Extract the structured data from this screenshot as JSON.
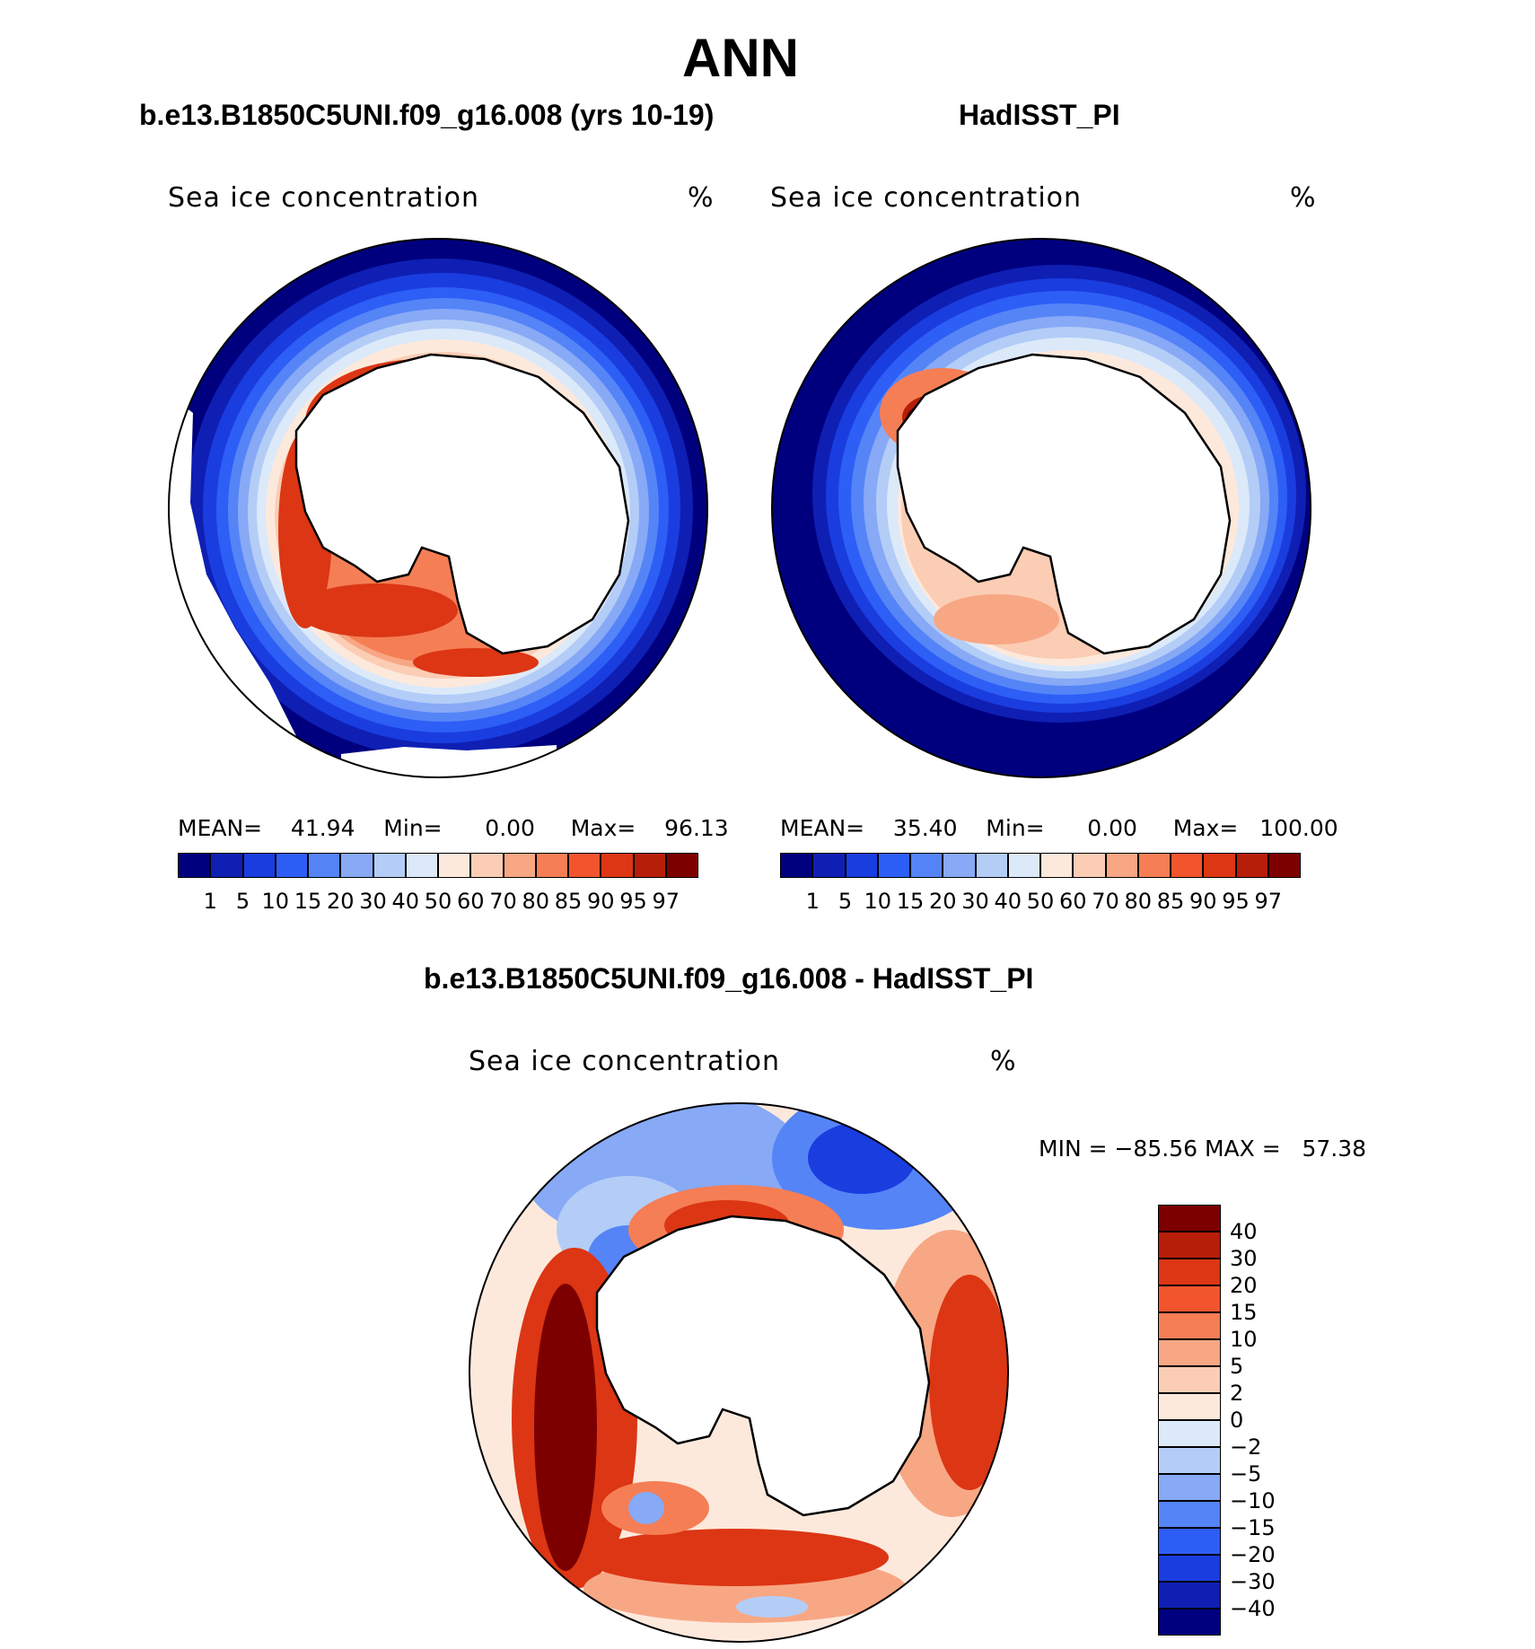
{
  "title": "ANN",
  "panels": [
    {
      "subtitle": "b.e13.B1850C5UNI.f09_g16.008 (yrs 10-19)",
      "label": "Sea ice concentration",
      "units": "%",
      "stats": {
        "mean_label": "MEAN=",
        "mean": "41.94",
        "min_label": "Min=",
        "min": "0.00",
        "max_label": "Max=",
        "max": "96.13"
      }
    },
    {
      "subtitle": "HadISST_PI",
      "label": "Sea ice concentration",
      "units": "%",
      "stats": {
        "mean_label": "MEAN=",
        "mean": "35.40",
        "min_label": "Min=",
        "min": "0.00",
        "max_label": "Max=",
        "max": "100.00"
      }
    }
  ],
  "diff_panel": {
    "subtitle": "b.e13.B1850C5UNI.f09_g16.008 - HadISST_PI",
    "label": "Sea ice concentration",
    "units": "%",
    "stats": "MIN = −85.56 MAX =   57.38"
  },
  "colorbar_abs": {
    "colors": [
      "#00007f",
      "#0f1fb3",
      "#1a3de0",
      "#2d5ef6",
      "#5584f7",
      "#87a9f6",
      "#b3cdf7",
      "#dce9f9",
      "#fde9dc",
      "#fbcdb5",
      "#f8a784",
      "#f57e55",
      "#f2552e",
      "#dc3614",
      "#b71e0a",
      "#7c0000"
    ],
    "ticks": [
      "1",
      "5",
      "10",
      "15",
      "20",
      "30",
      "40",
      "50",
      "60",
      "70",
      "80",
      "85",
      "90",
      "95",
      "97"
    ]
  },
  "colorbar_diff": {
    "colors": [
      "#7c0000",
      "#b71e0a",
      "#dc3614",
      "#f2552e",
      "#f57e55",
      "#f8a784",
      "#fbcdb5",
      "#fde9dc",
      "#dce9f9",
      "#b3cdf7",
      "#87a9f6",
      "#5584f7",
      "#2d5ef6",
      "#1a3de0",
      "#0f1fb3",
      "#00007f"
    ],
    "ticks": [
      "40",
      "30",
      "20",
      "15",
      "10",
      "5",
      "2",
      "0",
      "−2",
      "−5",
      "−10",
      "−15",
      "−20",
      "−30",
      "−40"
    ]
  }
}
